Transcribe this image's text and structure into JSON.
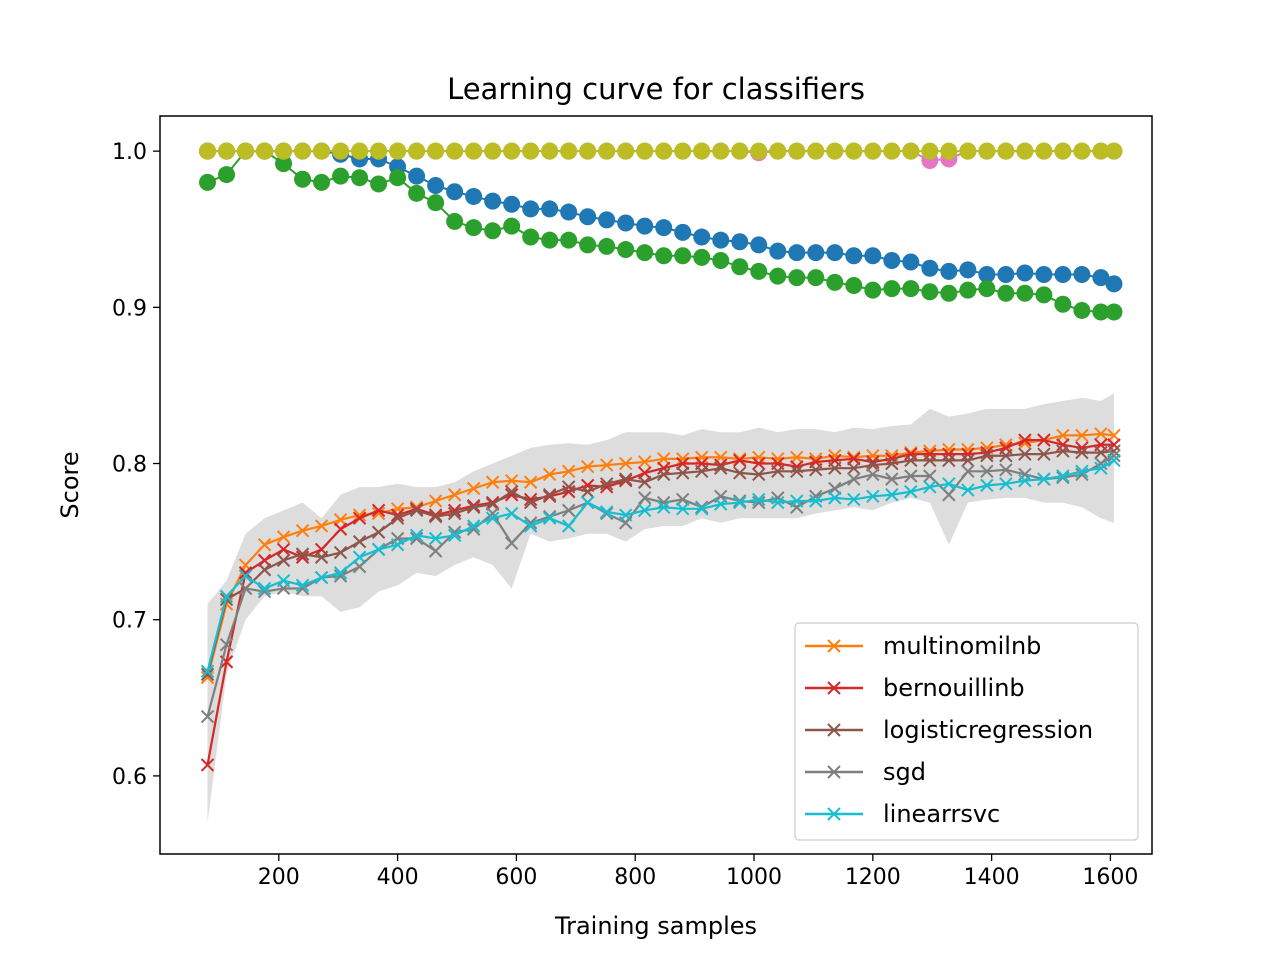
{
  "chart_data": {
    "type": "line",
    "title": "Learning curve for classifiers",
    "xlabel": "Training samples",
    "ylabel": "Score",
    "xlim": [
      0,
      1670
    ],
    "ylim": [
      0.55,
      1.0225
    ],
    "xticks": [
      200,
      400,
      600,
      800,
      1000,
      1200,
      1400,
      1600
    ],
    "yticks": [
      0.6,
      0.7,
      0.8,
      0.9,
      1.0
    ],
    "xtick_labels": [
      "200",
      "400",
      "600",
      "800",
      "1000",
      "1200",
      "1400",
      "1600"
    ],
    "ytick_labels": [
      "0.6",
      "0.7",
      "0.8",
      "0.9",
      "1.0"
    ],
    "grid": false,
    "legend_position": "lower right",
    "x": [
      80,
      112,
      144,
      176,
      208,
      240,
      272,
      304,
      336,
      368,
      400,
      432,
      464,
      496,
      528,
      560,
      592,
      624,
      656,
      688,
      720,
      752,
      784,
      816,
      848,
      880,
      912,
      944,
      976,
      1008,
      1040,
      1072,
      1104,
      1136,
      1168,
      1200,
      1232,
      1264,
      1296,
      1328,
      1360,
      1392,
      1424,
      1456,
      1488,
      1520,
      1552,
      1584,
      1606
    ],
    "train_series": [
      {
        "color": "#1f77b4",
        "values": [
          1.0,
          1.0,
          1.0,
          1.0,
          1.0,
          1.0,
          1.0,
          0.998,
          0.995,
          0.995,
          0.99,
          0.984,
          0.978,
          0.974,
          0.971,
          0.968,
          0.966,
          0.963,
          0.963,
          0.961,
          0.958,
          0.956,
          0.954,
          0.952,
          0.951,
          0.948,
          0.945,
          0.943,
          0.942,
          0.94,
          0.936,
          0.935,
          0.935,
          0.935,
          0.933,
          0.933,
          0.93,
          0.929,
          0.925,
          0.923,
          0.924,
          0.921,
          0.921,
          0.922,
          0.921,
          0.921,
          0.921,
          0.919,
          0.915
        ]
      },
      {
        "color": "#2ca02c",
        "values": [
          0.98,
          0.985,
          1.0,
          1.0,
          0.992,
          0.982,
          0.98,
          0.984,
          0.983,
          0.979,
          0.983,
          0.973,
          0.967,
          0.955,
          0.951,
          0.949,
          0.952,
          0.945,
          0.943,
          0.943,
          0.94,
          0.939,
          0.937,
          0.935,
          0.933,
          0.933,
          0.932,
          0.93,
          0.926,
          0.923,
          0.92,
          0.919,
          0.919,
          0.916,
          0.914,
          0.911,
          0.912,
          0.912,
          0.91,
          0.909,
          0.911,
          0.912,
          0.909,
          0.909,
          0.908,
          0.902,
          0.898,
          0.897,
          0.897
        ]
      },
      {
        "color": "#e377c2",
        "values": [
          1.0,
          1.0,
          1.0,
          1.0,
          1.0,
          1.0,
          1.0,
          1.0,
          1.0,
          1.0,
          1.0,
          1.0,
          1.0,
          1.0,
          1.0,
          1.0,
          1.0,
          1.0,
          1.0,
          1.0,
          1.0,
          1.0,
          1.0,
          1.0,
          1.0,
          1.0,
          1.0,
          1.0,
          1.0,
          0.999,
          1.0,
          1.0,
          1.0,
          1.0,
          1.0,
          1.0,
          1.0,
          1.0,
          0.994,
          0.995,
          1.0,
          1.0,
          1.0,
          1.0,
          1.0,
          1.0,
          1.0,
          1.0,
          1.0
        ]
      },
      {
        "color": "#bcbd22",
        "values": [
          1.0,
          1.0,
          1.0,
          1.0,
          1.0,
          1.0,
          1.0,
          1.0,
          1.0,
          1.0,
          1.0,
          1.0,
          1.0,
          1.0,
          1.0,
          1.0,
          1.0,
          1.0,
          1.0,
          1.0,
          1.0,
          1.0,
          1.0,
          1.0,
          1.0,
          1.0,
          1.0,
          1.0,
          1.0,
          1.0,
          1.0,
          1.0,
          1.0,
          1.0,
          1.0,
          1.0,
          1.0,
          1.0,
          1.0,
          1.0,
          1.0,
          1.0,
          1.0,
          1.0,
          1.0,
          1.0,
          1.0,
          1.0,
          1.0
        ]
      }
    ],
    "band": {
      "color": "#dddddd",
      "upper": [
        0.71,
        0.725,
        0.755,
        0.765,
        0.77,
        0.775,
        0.765,
        0.78,
        0.785,
        0.785,
        0.787,
        0.785,
        0.785,
        0.788,
        0.795,
        0.8,
        0.805,
        0.81,
        0.812,
        0.813,
        0.812,
        0.815,
        0.82,
        0.82,
        0.82,
        0.818,
        0.822,
        0.82,
        0.82,
        0.823,
        0.82,
        0.822,
        0.822,
        0.82,
        0.823,
        0.822,
        0.824,
        0.825,
        0.835,
        0.83,
        0.832,
        0.835,
        0.835,
        0.835,
        0.838,
        0.84,
        0.842,
        0.84,
        0.845
      ],
      "lower": [
        0.57,
        0.665,
        0.7,
        0.715,
        0.718,
        0.715,
        0.715,
        0.705,
        0.708,
        0.718,
        0.722,
        0.73,
        0.728,
        0.735,
        0.74,
        0.735,
        0.72,
        0.755,
        0.75,
        0.752,
        0.755,
        0.755,
        0.75,
        0.758,
        0.76,
        0.76,
        0.765,
        0.762,
        0.765,
        0.765,
        0.765,
        0.765,
        0.768,
        0.77,
        0.772,
        0.77,
        0.775,
        0.778,
        0.775,
        0.748,
        0.775,
        0.777,
        0.778,
        0.778,
        0.775,
        0.775,
        0.772,
        0.765,
        0.762
      ]
    },
    "series": [
      {
        "name": "multinomilnb",
        "color": "#ff7f0e",
        "values": [
          0.663,
          0.71,
          0.735,
          0.748,
          0.753,
          0.757,
          0.76,
          0.764,
          0.767,
          0.768,
          0.771,
          0.772,
          0.776,
          0.78,
          0.784,
          0.788,
          0.789,
          0.788,
          0.793,
          0.795,
          0.798,
          0.799,
          0.8,
          0.801,
          0.803,
          0.803,
          0.804,
          0.804,
          0.803,
          0.804,
          0.803,
          0.804,
          0.803,
          0.805,
          0.804,
          0.805,
          0.805,
          0.807,
          0.808,
          0.809,
          0.809,
          0.81,
          0.812,
          0.813,
          0.815,
          0.818,
          0.818,
          0.819,
          0.818
        ]
      },
      {
        "name": "bernouillinb",
        "color": "#d62728",
        "values": [
          0.607,
          0.673,
          0.73,
          0.738,
          0.745,
          0.74,
          0.745,
          0.758,
          0.765,
          0.77,
          0.767,
          0.771,
          0.767,
          0.77,
          0.773,
          0.775,
          0.78,
          0.777,
          0.779,
          0.782,
          0.786,
          0.785,
          0.789,
          0.794,
          0.797,
          0.8,
          0.8,
          0.799,
          0.802,
          0.8,
          0.8,
          0.798,
          0.801,
          0.802,
          0.803,
          0.801,
          0.803,
          0.806,
          0.806,
          0.806,
          0.806,
          0.807,
          0.81,
          0.815,
          0.815,
          0.812,
          0.81,
          0.812,
          0.812
        ]
      },
      {
        "name": "logisticregression",
        "color": "#8c564b",
        "values": [
          0.665,
          0.713,
          0.72,
          0.732,
          0.738,
          0.742,
          0.74,
          0.743,
          0.75,
          0.756,
          0.765,
          0.77,
          0.766,
          0.768,
          0.772,
          0.774,
          0.782,
          0.775,
          0.78,
          0.785,
          0.782,
          0.787,
          0.79,
          0.788,
          0.793,
          0.794,
          0.795,
          0.797,
          0.794,
          0.793,
          0.795,
          0.795,
          0.796,
          0.797,
          0.797,
          0.799,
          0.8,
          0.802,
          0.802,
          0.802,
          0.802,
          0.805,
          0.805,
          0.806,
          0.806,
          0.808,
          0.807,
          0.807,
          0.808
        ]
      },
      {
        "name": "sgd",
        "color": "#7f7f7f",
        "values": [
          0.638,
          0.684,
          0.72,
          0.718,
          0.72,
          0.72,
          0.727,
          0.728,
          0.734,
          0.745,
          0.752,
          0.752,
          0.744,
          0.756,
          0.758,
          0.768,
          0.749,
          0.762,
          0.766,
          0.77,
          0.775,
          0.768,
          0.762,
          0.778,
          0.775,
          0.777,
          0.772,
          0.779,
          0.776,
          0.775,
          0.778,
          0.772,
          0.779,
          0.784,
          0.79,
          0.793,
          0.79,
          0.792,
          0.792,
          0.78,
          0.795,
          0.795,
          0.796,
          0.793,
          0.79,
          0.791,
          0.793,
          0.8,
          0.805
        ]
      },
      {
        "name": "linearrsvc",
        "color": "#17becf",
        "values": [
          0.667,
          0.715,
          0.728,
          0.72,
          0.725,
          0.722,
          0.727,
          0.73,
          0.74,
          0.745,
          0.748,
          0.754,
          0.752,
          0.754,
          0.76,
          0.765,
          0.768,
          0.76,
          0.765,
          0.76,
          0.775,
          0.769,
          0.767,
          0.77,
          0.772,
          0.771,
          0.771,
          0.774,
          0.775,
          0.777,
          0.775,
          0.776,
          0.776,
          0.778,
          0.777,
          0.779,
          0.78,
          0.782,
          0.785,
          0.787,
          0.783,
          0.786,
          0.787,
          0.789,
          0.79,
          0.792,
          0.795,
          0.797,
          0.802
        ]
      }
    ]
  }
}
